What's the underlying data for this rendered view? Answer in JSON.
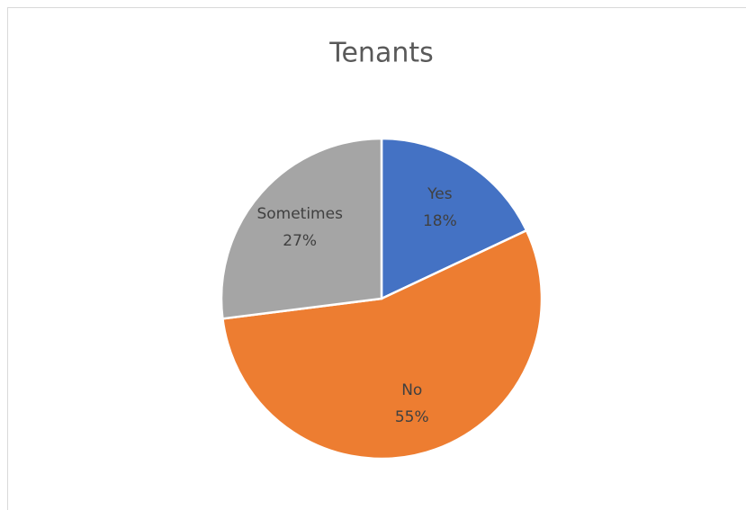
{
  "chart_data": {
    "type": "pie",
    "title": "Tenants",
    "categories": [
      "Yes",
      "No",
      "Sometimes"
    ],
    "values": [
      18,
      55,
      27
    ],
    "value_labels": [
      "18%",
      "55%",
      "27%"
    ],
    "colors": [
      "#4472c4",
      "#ed7d31",
      "#a5a5a5"
    ]
  }
}
